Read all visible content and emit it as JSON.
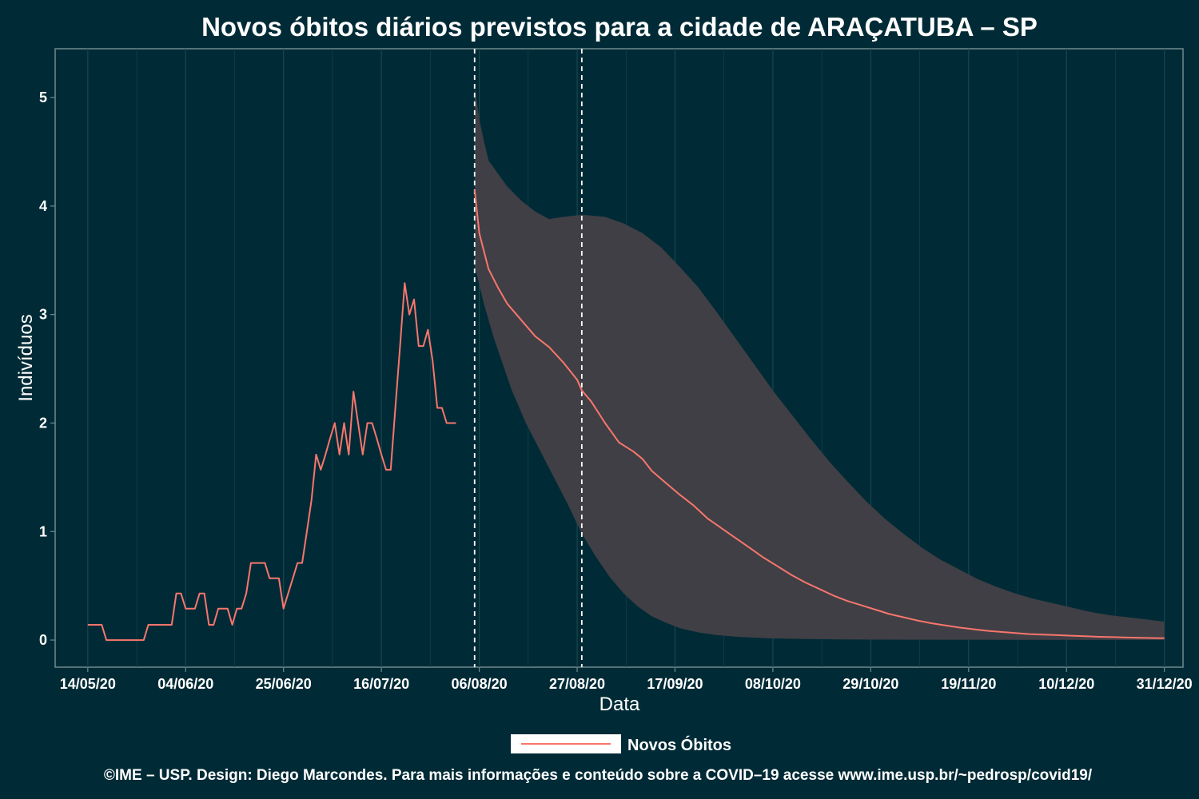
{
  "chart_data": {
    "type": "line",
    "title": "Novos óbitos diários previstos para a cidade de ARAÇATUBA – SP",
    "xlabel": "Data",
    "ylabel": "Indivíduos",
    "x_tick_labels": [
      "14/05/20",
      "04/06/20",
      "25/06/20",
      "16/07/20",
      "06/08/20",
      "27/08/20",
      "17/09/20",
      "08/10/20",
      "29/10/20",
      "19/11/20",
      "10/12/20",
      "31/12/20"
    ],
    "y_tick_labels": [
      "0",
      "1",
      "2",
      "3",
      "4",
      "5"
    ],
    "ylim": [
      -0.25,
      5.45
    ],
    "xlim": [
      "2020-05-07",
      "2021-01-04"
    ],
    "grid": true,
    "legend_position": "bottom",
    "vertical_lines": [
      "2020-08-05",
      "2020-08-28"
    ],
    "colors": {
      "background": "#002b36",
      "line": "#f8766d",
      "ribbon": "#403f45",
      "grid": "#1a4550",
      "axis": "#6f8a8f",
      "vline": "#ffffff"
    },
    "series": [
      {
        "name": "Novos Óbitos",
        "type": "line",
        "points": [
          [
            "2020-05-14",
            0.14
          ],
          [
            "2020-05-15",
            0.14
          ],
          [
            "2020-05-16",
            0.14
          ],
          [
            "2020-05-17",
            0.14
          ],
          [
            "2020-05-18",
            0
          ],
          [
            "2020-05-19",
            0
          ],
          [
            "2020-05-20",
            0
          ],
          [
            "2020-05-21",
            0
          ],
          [
            "2020-05-22",
            0
          ],
          [
            "2020-05-23",
            0
          ],
          [
            "2020-05-24",
            0
          ],
          [
            "2020-05-25",
            0
          ],
          [
            "2020-05-26",
            0
          ],
          [
            "2020-05-27",
            0.14
          ],
          [
            "2020-05-28",
            0.14
          ],
          [
            "2020-05-29",
            0.14
          ],
          [
            "2020-05-30",
            0.14
          ],
          [
            "2020-05-31",
            0.14
          ],
          [
            "2020-06-01",
            0.14
          ],
          [
            "2020-06-02",
            0.43
          ],
          [
            "2020-06-03",
            0.43
          ],
          [
            "2020-06-04",
            0.29
          ],
          [
            "2020-06-05",
            0.29
          ],
          [
            "2020-06-06",
            0.29
          ],
          [
            "2020-06-07",
            0.43
          ],
          [
            "2020-06-08",
            0.43
          ],
          [
            "2020-06-09",
            0.14
          ],
          [
            "2020-06-10",
            0.14
          ],
          [
            "2020-06-11",
            0.29
          ],
          [
            "2020-06-12",
            0.29
          ],
          [
            "2020-06-13",
            0.29
          ],
          [
            "2020-06-14",
            0.14
          ],
          [
            "2020-06-15",
            0.29
          ],
          [
            "2020-06-16",
            0.29
          ],
          [
            "2020-06-17",
            0.43
          ],
          [
            "2020-06-18",
            0.71
          ],
          [
            "2020-06-19",
            0.71
          ],
          [
            "2020-06-20",
            0.71
          ],
          [
            "2020-06-21",
            0.71
          ],
          [
            "2020-06-22",
            0.57
          ],
          [
            "2020-06-23",
            0.57
          ],
          [
            "2020-06-24",
            0.57
          ],
          [
            "2020-06-25",
            0.29
          ],
          [
            "2020-06-26",
            0.43
          ],
          [
            "2020-06-27",
            0.57
          ],
          [
            "2020-06-28",
            0.71
          ],
          [
            "2020-06-29",
            0.71
          ],
          [
            "2020-06-30",
            1.0
          ],
          [
            "2020-07-01",
            1.29
          ],
          [
            "2020-07-02",
            1.71
          ],
          [
            "2020-07-03",
            1.57
          ],
          [
            "2020-07-04",
            1.71
          ],
          [
            "2020-07-05",
            1.86
          ],
          [
            "2020-07-06",
            2.0
          ],
          [
            "2020-07-07",
            1.71
          ],
          [
            "2020-07-08",
            2.0
          ],
          [
            "2020-07-09",
            1.71
          ],
          [
            "2020-07-10",
            2.29
          ],
          [
            "2020-07-11",
            2.0
          ],
          [
            "2020-07-12",
            1.71
          ],
          [
            "2020-07-13",
            2.0
          ],
          [
            "2020-07-14",
            2.0
          ],
          [
            "2020-07-15",
            1.86
          ],
          [
            "2020-07-16",
            1.71
          ],
          [
            "2020-07-17",
            1.57
          ],
          [
            "2020-07-18",
            1.57
          ],
          [
            "2020-07-19",
            2.14
          ],
          [
            "2020-07-20",
            2.71
          ],
          [
            "2020-07-21",
            3.29
          ],
          [
            "2020-07-22",
            3.0
          ],
          [
            "2020-07-23",
            3.14
          ],
          [
            "2020-07-24",
            2.71
          ],
          [
            "2020-07-25",
            2.71
          ],
          [
            "2020-07-26",
            2.86
          ],
          [
            "2020-07-27",
            2.57
          ],
          [
            "2020-07-28",
            2.14
          ],
          [
            "2020-07-29",
            2.14
          ],
          [
            "2020-07-30",
            2.0
          ],
          [
            "2020-07-31",
            2.0
          ],
          [
            "2020-08-01",
            2.0
          ]
        ]
      },
      {
        "name": "Novos Óbitos",
        "type": "line",
        "points": [
          [
            "2020-08-05",
            4.15
          ],
          [
            "2020-08-06",
            3.75
          ],
          [
            "2020-08-08",
            3.42
          ],
          [
            "2020-08-10",
            3.25
          ],
          [
            "2020-08-12",
            3.1
          ],
          [
            "2020-08-14",
            3.0
          ],
          [
            "2020-08-16",
            2.9
          ],
          [
            "2020-08-18",
            2.8
          ],
          [
            "2020-08-21",
            2.7
          ],
          [
            "2020-08-24",
            2.56
          ],
          [
            "2020-08-27",
            2.4
          ],
          [
            "2020-08-28",
            2.3
          ],
          [
            "2020-08-30",
            2.2
          ],
          [
            "2020-09-02",
            2.0
          ],
          [
            "2020-09-05",
            1.82
          ],
          [
            "2020-09-08",
            1.74
          ],
          [
            "2020-09-10",
            1.67
          ],
          [
            "2020-09-12",
            1.56
          ],
          [
            "2020-09-15",
            1.45
          ],
          [
            "2020-09-18",
            1.34
          ],
          [
            "2020-09-21",
            1.24
          ],
          [
            "2020-09-24",
            1.12
          ],
          [
            "2020-09-27",
            1.03
          ],
          [
            "2020-09-30",
            0.94
          ],
          [
            "2020-10-03",
            0.85
          ],
          [
            "2020-10-06",
            0.76
          ],
          [
            "2020-10-09",
            0.68
          ],
          [
            "2020-10-12",
            0.6
          ],
          [
            "2020-10-15",
            0.53
          ],
          [
            "2020-10-18",
            0.47
          ],
          [
            "2020-10-21",
            0.41
          ],
          [
            "2020-10-24",
            0.36
          ],
          [
            "2020-10-27",
            0.32
          ],
          [
            "2020-10-30",
            0.28
          ],
          [
            "2020-11-02",
            0.24
          ],
          [
            "2020-11-05",
            0.21
          ],
          [
            "2020-11-08",
            0.18
          ],
          [
            "2020-11-11",
            0.155
          ],
          [
            "2020-11-14",
            0.135
          ],
          [
            "2020-11-17",
            0.115
          ],
          [
            "2020-11-20",
            0.1
          ],
          [
            "2020-11-23",
            0.085
          ],
          [
            "2020-11-26",
            0.075
          ],
          [
            "2020-11-29",
            0.065
          ],
          [
            "2020-12-02",
            0.055
          ],
          [
            "2020-12-05",
            0.05
          ],
          [
            "2020-12-08",
            0.045
          ],
          [
            "2020-12-11",
            0.04
          ],
          [
            "2020-12-14",
            0.035
          ],
          [
            "2020-12-17",
            0.03
          ],
          [
            "2020-12-20",
            0.027
          ],
          [
            "2020-12-23",
            0.023
          ],
          [
            "2020-12-26",
            0.02
          ],
          [
            "2020-12-29",
            0.018
          ],
          [
            "2020-12-31",
            0.017
          ]
        ]
      },
      {
        "type": "ribbon",
        "upper": [
          [
            "2020-08-05",
            5.1
          ],
          [
            "2020-08-06",
            4.8
          ],
          [
            "2020-08-07",
            4.6
          ],
          [
            "2020-08-08",
            4.42
          ],
          [
            "2020-08-10",
            4.3
          ],
          [
            "2020-08-12",
            4.18
          ],
          [
            "2020-08-15",
            4.05
          ],
          [
            "2020-08-18",
            3.95
          ],
          [
            "2020-08-21",
            3.88
          ],
          [
            "2020-08-24",
            3.9
          ],
          [
            "2020-08-28",
            3.92
          ],
          [
            "2020-09-02",
            3.9
          ],
          [
            "2020-09-06",
            3.84
          ],
          [
            "2020-09-10",
            3.75
          ],
          [
            "2020-09-14",
            3.62
          ],
          [
            "2020-09-18",
            3.44
          ],
          [
            "2020-09-22",
            3.25
          ],
          [
            "2020-09-26",
            3.02
          ],
          [
            "2020-09-30",
            2.78
          ],
          [
            "2020-10-04",
            2.54
          ],
          [
            "2020-10-08",
            2.3
          ],
          [
            "2020-10-12",
            2.08
          ],
          [
            "2020-10-16",
            1.86
          ],
          [
            "2020-10-20",
            1.65
          ],
          [
            "2020-10-24",
            1.46
          ],
          [
            "2020-10-28",
            1.28
          ],
          [
            "2020-11-01",
            1.12
          ],
          [
            "2020-11-05",
            0.98
          ],
          [
            "2020-11-09",
            0.85
          ],
          [
            "2020-11-13",
            0.74
          ],
          [
            "2020-11-17",
            0.65
          ],
          [
            "2020-11-21",
            0.56
          ],
          [
            "2020-11-25",
            0.49
          ],
          [
            "2020-11-29",
            0.43
          ],
          [
            "2020-12-03",
            0.38
          ],
          [
            "2020-12-07",
            0.34
          ],
          [
            "2020-12-11",
            0.3
          ],
          [
            "2020-12-15",
            0.26
          ],
          [
            "2020-12-19",
            0.23
          ],
          [
            "2020-12-23",
            0.21
          ],
          [
            "2020-12-27",
            0.19
          ],
          [
            "2020-12-31",
            0.17
          ]
        ],
        "lower": [
          [
            "2020-08-05",
            3.45
          ],
          [
            "2020-08-07",
            3.1
          ],
          [
            "2020-08-09",
            2.8
          ],
          [
            "2020-08-11",
            2.55
          ],
          [
            "2020-08-13",
            2.3
          ],
          [
            "2020-08-16",
            2.0
          ],
          [
            "2020-08-19",
            1.75
          ],
          [
            "2020-08-22",
            1.5
          ],
          [
            "2020-08-25",
            1.25
          ],
          [
            "2020-08-28",
            0.98
          ],
          [
            "2020-08-31",
            0.77
          ],
          [
            "2020-09-03",
            0.58
          ],
          [
            "2020-09-06",
            0.43
          ],
          [
            "2020-09-09",
            0.31
          ],
          [
            "2020-09-12",
            0.22
          ],
          [
            "2020-09-15",
            0.16
          ],
          [
            "2020-09-18",
            0.11
          ],
          [
            "2020-09-22",
            0.07
          ],
          [
            "2020-09-26",
            0.045
          ],
          [
            "2020-10-01",
            0.028
          ],
          [
            "2020-10-07",
            0.016
          ],
          [
            "2020-10-15",
            0.009
          ],
          [
            "2020-10-25",
            0.005
          ],
          [
            "2020-11-10",
            0.003
          ],
          [
            "2020-12-01",
            0.002
          ],
          [
            "2020-12-31",
            0.001
          ]
        ]
      }
    ]
  },
  "legend": {
    "label": "Novos Óbitos"
  },
  "caption": "©IME – USP. Design: Diego Marcondes. Para mais informações e conteúdo sobre a COVID–19 acesse www.ime.usp.br/~pedrosp/covid19/"
}
